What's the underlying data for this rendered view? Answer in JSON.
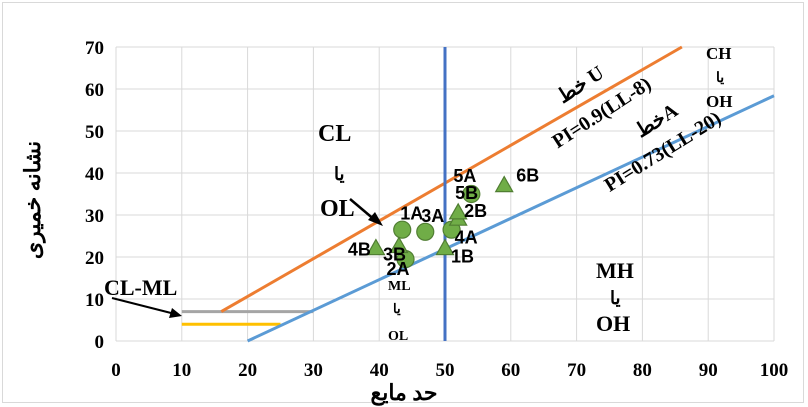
{
  "chart_data": {
    "type": "scatter",
    "title": "",
    "xlabel": "حد مایع",
    "ylabel": "نشانه خمیری",
    "xlim": [
      0,
      100
    ],
    "ylim": [
      0,
      70
    ],
    "x_ticks": [
      0,
      10,
      20,
      30,
      40,
      50,
      60,
      70,
      80,
      90,
      100
    ],
    "y_ticks": [
      0,
      10,
      20,
      30,
      40,
      50,
      60,
      70
    ],
    "grid": true,
    "colors": {
      "u_line": "#ed7d31",
      "a_line": "#5b9bd5",
      "vertical_line": "#4472c4",
      "grey_band": "#a5a5a5",
      "yellow_band": "#ffc000",
      "marker_fill": "#70ad47",
      "marker_edge": "#507e32"
    },
    "lines": {
      "u_line": {
        "from": [
          16,
          7
        ],
        "to": [
          86,
          70
        ],
        "label": "خط U",
        "equation": "PI=0.9(LL-8)"
      },
      "a_line": {
        "from": [
          20,
          0
        ],
        "to": [
          100,
          58.4
        ],
        "label": "خطA",
        "equation": "PI=0.73(LL-20)"
      },
      "vertical_line": {
        "x": 50
      },
      "grey_band": {
        "from": [
          10,
          7
        ],
        "to": [
          30,
          7
        ]
      },
      "yellow_band": {
        "from": [
          10,
          4
        ],
        "to": [
          25,
          4
        ]
      }
    },
    "zones": {
      "cl_ol": {
        "line1": "CL",
        "line2": "یا",
        "line3": "OL"
      },
      "ch_oh": {
        "line1": "CH",
        "line2": "یا",
        "line3": "OH"
      },
      "mh_oh": {
        "line1": "MH",
        "line2": "یا",
        "line3": "OH"
      },
      "ml_ol": {
        "line1": "ML",
        "line2": "یا",
        "line3": "OL"
      },
      "cl_ml": "CL-ML"
    },
    "points": [
      {
        "label": "1A",
        "x": 43.5,
        "y": 26.5,
        "marker": "circle"
      },
      {
        "label": "2A",
        "x": 44.0,
        "y": 19.5,
        "marker": "circle"
      },
      {
        "label": "3A",
        "x": 47.0,
        "y": 26.0,
        "marker": "circle"
      },
      {
        "label": "4A",
        "x": 51.0,
        "y": 26.5,
        "marker": "circle"
      },
      {
        "label": "5A",
        "x": 54.0,
        "y": 35.0,
        "marker": "circle"
      },
      {
        "label": "1B",
        "x": 50.0,
        "y": 22.0,
        "marker": "triangle"
      },
      {
        "label": "2B",
        "x": 52.0,
        "y": 29.0,
        "marker": "triangle"
      },
      {
        "label": "3B",
        "x": 43.0,
        "y": 22.5,
        "marker": "triangle"
      },
      {
        "label": "4B",
        "x": 39.5,
        "y": 22.0,
        "marker": "triangle"
      },
      {
        "label": "5B",
        "x": 52.0,
        "y": 30.5,
        "marker": "triangle"
      },
      {
        "label": "6B",
        "x": 59.0,
        "y": 37.0,
        "marker": "triangle"
      }
    ]
  }
}
